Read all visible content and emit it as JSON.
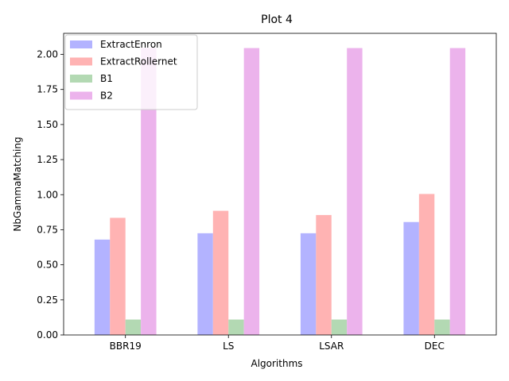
{
  "chart_data": {
    "type": "bar",
    "title": "Plot 4",
    "xlabel": "Algorithms",
    "ylabel": "NbGammaMatching",
    "categories": [
      "BBR19",
      "LS",
      "LSAR",
      "DEC"
    ],
    "ylim": [
      0,
      2.15
    ],
    "yticks": [
      "0.00",
      "0.25",
      "0.50",
      "0.75",
      "1.00",
      "1.25",
      "1.50",
      "1.75",
      "2.00"
    ],
    "grid": false,
    "legend_position": "top-left",
    "series": [
      {
        "name": "ExtractEnron",
        "color": "#b3b3ff",
        "values": [
          0.68,
          0.725,
          0.725,
          0.805
        ]
      },
      {
        "name": "ExtractRollernet",
        "color": "#ffb3b3",
        "values": [
          0.835,
          0.885,
          0.855,
          1.005
        ]
      },
      {
        "name": "B1",
        "color": "#b3d9b3",
        "values": [
          0.11,
          0.11,
          0.11,
          0.11
        ]
      },
      {
        "name": "B2",
        "color": "#ecb3ec",
        "values": [
          2.045,
          2.045,
          2.045,
          2.045
        ]
      }
    ]
  }
}
